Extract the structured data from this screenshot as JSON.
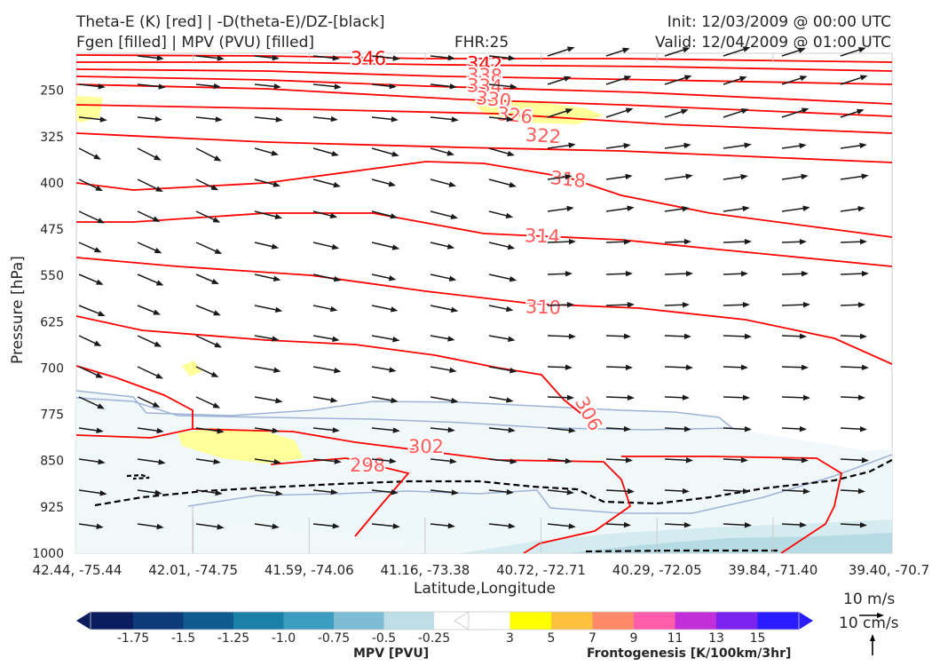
{
  "header": {
    "title_line1": "Theta-E (K) [red] | -D(theta-E)/DZ-[black]",
    "title_line2": "Fgen [filled] | MPV (PVU) [filled]",
    "fhr": "FHR:25",
    "init": "Init: 12/03/2009 @ 00:00 UTC",
    "valid": "Valid: 12/04/2009 @ 01:00 UTC"
  },
  "chart_data": {
    "type": "contour cross-section",
    "ylabel": "Pressure [hPa]",
    "xlabel": "Latitude,Longitude",
    "y_ticks": [
      "250",
      "325",
      "400",
      "475",
      "550",
      "625",
      "700",
      "775",
      "850",
      "925",
      "1000"
    ],
    "x_ticks": [
      "42.44, -75.44",
      "42.01, -74.75",
      "41.59, -74.06",
      "41.16, -73.38",
      "40.72, -72.71",
      "40.29, -72.05",
      "39.84, -71.40",
      "39.40, -70.7"
    ],
    "ylim": [
      1000,
      190
    ],
    "theta_e_contours": [
      {
        "label": "346",
        "color": "#ff0000"
      },
      {
        "label": "342",
        "color": "#ff0000"
      },
      {
        "label": "338",
        "color": "#ff5a5a"
      },
      {
        "label": "334",
        "color": "#ff5a5a"
      },
      {
        "label": "330",
        "color": "#ff5a5a"
      },
      {
        "label": "326",
        "color": "#ff5a5a"
      },
      {
        "label": "322",
        "color": "#ff5a5a"
      },
      {
        "label": "318",
        "color": "#ff5a5a"
      },
      {
        "label": "314",
        "color": "#ff5a5a"
      },
      {
        "label": "310",
        "color": "#ff5a5a"
      },
      {
        "label": "306",
        "color": "#ff5a5a"
      },
      {
        "label": "302",
        "color": "#ff5a5a"
      },
      {
        "label": "298",
        "color": "#ff5a5a"
      }
    ],
    "wind_arrow_color": "#1a1a1a",
    "contour_line_color": "#ff0000",
    "mpv_outline_color": "#9fb3d6"
  },
  "mpv_colorbar": {
    "label": "MPV [PVU]",
    "ticks": [
      "-1.75",
      "-1.5",
      "-1.25",
      "-1.0",
      "-0.75",
      "-0.5",
      "-0.25"
    ],
    "colors": [
      "#0b1d5e",
      "#0d3a78",
      "#0f5a8e",
      "#1a80a8",
      "#3b9ec0",
      "#7ebcd3",
      "#bddde7",
      "#ffffff"
    ]
  },
  "fgen_colorbar": {
    "label": "Frontogenesis [K/100km/3hr]",
    "ticks": [
      "3",
      "5",
      "7",
      "9",
      "11",
      "13",
      "15"
    ],
    "colors": [
      "#ffffff",
      "#ffff00",
      "#ffc13b",
      "#ff8a6a",
      "#ff5caa",
      "#c22fd9",
      "#7a22ee",
      "#2a1cff"
    ]
  },
  "reference_vectors": {
    "horizontal": "10 m/s",
    "vertical": "10 cm/s"
  }
}
